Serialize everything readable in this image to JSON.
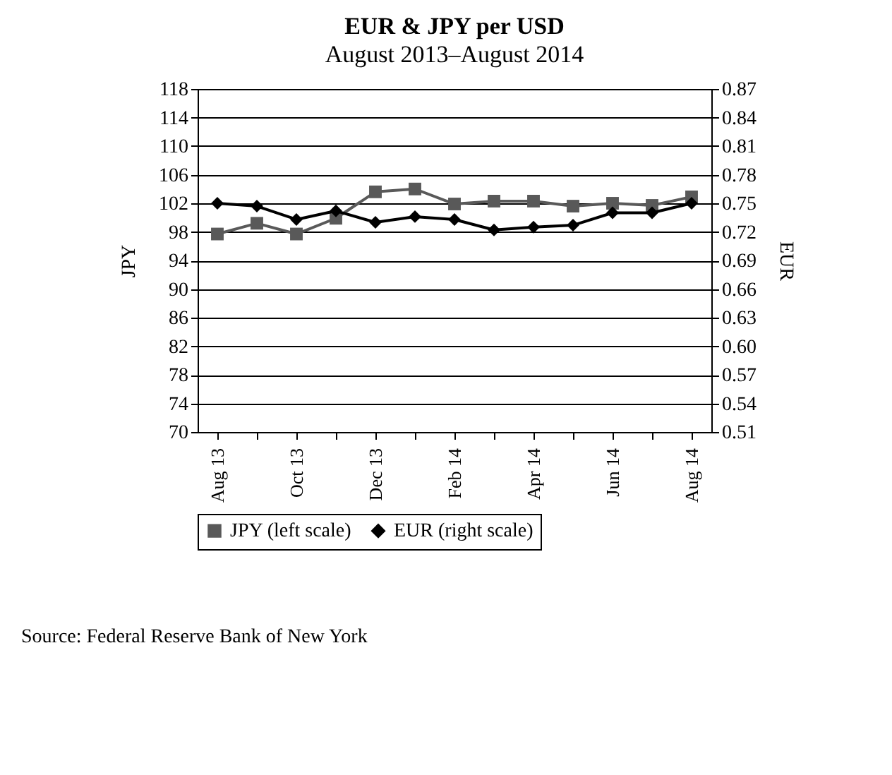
{
  "chart_data": {
    "type": "line",
    "title": "EUR & JPY per USD",
    "subtitle": "August 2013–August 2014",
    "ylabel": "JPY",
    "y2label": "EUR",
    "categories": [
      "Aug 13",
      null,
      "Oct 13",
      null,
      "Dec 13",
      null,
      "Feb 14",
      null,
      "Apr 14",
      null,
      "Jun 14",
      null,
      "Aug 14"
    ],
    "series": [
      {
        "name": "JPY (left scale)",
        "color": "#595959",
        "marker": "square",
        "values": [
          97.7,
          99.2,
          97.7,
          99.9,
          103.6,
          104.0,
          101.9,
          102.3,
          102.3,
          101.6,
          102.0,
          101.7,
          102.9
        ]
      },
      {
        "name": "EUR (right scale)",
        "color": "#000000",
        "marker": "diamond",
        "axis": "y2",
        "values": [
          0.75,
          0.747,
          0.733,
          0.742,
          0.73,
          0.736,
          0.733,
          0.722,
          0.725,
          0.727,
          0.74,
          0.74,
          0.75
        ]
      }
    ],
    "ylim": [
      70,
      118
    ],
    "yticks": [
      70,
      74,
      78,
      82,
      86,
      90,
      94,
      98,
      102,
      106,
      110,
      114,
      118
    ],
    "y2lim": [
      0.51,
      0.87
    ],
    "y2ticks": [
      0.51,
      0.54,
      0.57,
      {
        "value": 0.6,
        "label": "0.60"
      },
      0.63,
      0.66,
      0.69,
      0.72,
      0.75,
      0.78,
      0.81,
      0.84,
      0.87
    ],
    "grid": "y",
    "legend": "bottom",
    "line_style": "solid",
    "annotations": [
      "Source: Federal Reserve Bank of New York"
    ]
  }
}
